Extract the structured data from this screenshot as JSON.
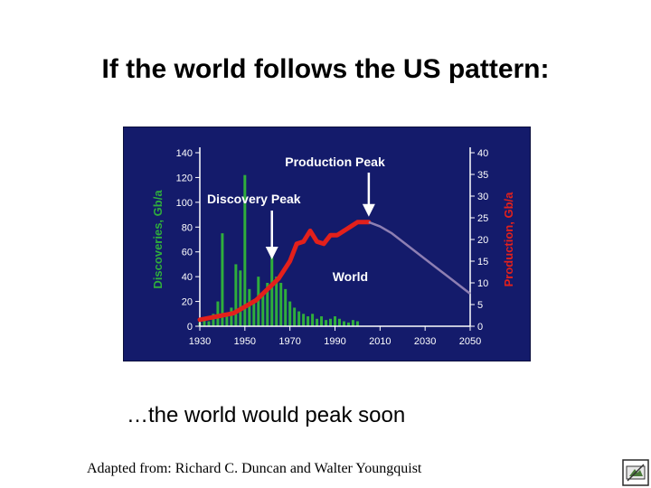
{
  "slide": {
    "title": "If the world follows the US pattern:",
    "subtitle": "…the world would peak soon",
    "credit": "Adapted from: Richard C. Duncan and Walter Youngquist"
  },
  "chart_data": {
    "type": "bar+line",
    "ylabel_left": "Discoveries, Gb/a",
    "ylabel_right": "Production, Gb/a",
    "x_ticks": [
      1930,
      1950,
      1970,
      1990,
      2010,
      2030,
      2050
    ],
    "y_left_ticks": [
      0,
      20,
      40,
      60,
      80,
      100,
      120,
      140
    ],
    "y_right_ticks": [
      0,
      5,
      10,
      15,
      20,
      25,
      30,
      35,
      40
    ],
    "xlim": [
      1930,
      2050
    ],
    "ylim_left": [
      0,
      140
    ],
    "ylim_right": [
      0,
      40
    ],
    "colors": {
      "background": "#141b6b",
      "discoveries": "#2fae3c",
      "production_history": "#e3201b",
      "production_forecast": "#8e7fb3",
      "text": "#ffffff",
      "right_label": "#e3201b"
    },
    "series": [
      {
        "name": "Discoveries",
        "axis": "left",
        "x": [
          1930,
          1932,
          1934,
          1936,
          1938,
          1940,
          1942,
          1944,
          1946,
          1948,
          1950,
          1952,
          1954,
          1956,
          1958,
          1960,
          1962,
          1964,
          1966,
          1968,
          1970,
          1972,
          1974,
          1976,
          1978,
          1980,
          1982,
          1984,
          1986,
          1988,
          1990,
          1992,
          1994,
          1996,
          1998,
          2000
        ],
        "values": [
          3,
          5,
          4,
          10,
          20,
          75,
          8,
          15,
          50,
          45,
          122,
          30,
          20,
          40,
          25,
          35,
          60,
          40,
          35,
          30,
          20,
          15,
          12,
          10,
          8,
          10,
          6,
          8,
          5,
          6,
          8,
          6,
          4,
          3,
          5,
          4
        ]
      },
      {
        "name": "World",
        "axis": "right",
        "history": {
          "x": [
            1930,
            1935,
            1940,
            1945,
            1950,
            1955,
            1960,
            1965,
            1970,
            1973,
            1976,
            1979,
            1982,
            1985,
            1988,
            1991,
            1994,
            1997,
            2000,
            2005
          ],
          "values": [
            1.5,
            2.0,
            2.5,
            3.0,
            4.5,
            6.0,
            8.5,
            11.0,
            15.0,
            19.0,
            19.5,
            22.0,
            19.5,
            19.0,
            21.0,
            21.0,
            22.0,
            23.0,
            24.0,
            24.0
          ]
        },
        "forecast": {
          "x": [
            2005,
            2010,
            2015,
            2020,
            2025,
            2030,
            2035,
            2040,
            2045,
            2050
          ],
          "values": [
            24.0,
            23.0,
            21.5,
            19.5,
            17.5,
            15.5,
            13.5,
            11.5,
            9.5,
            7.5
          ]
        }
      }
    ],
    "annotations": [
      {
        "text": "Discovery Peak",
        "x": 1962,
        "axis": "left"
      },
      {
        "text": "Production Peak",
        "x": 2005,
        "axis": "right"
      },
      {
        "text": "World",
        "x": 2000,
        "axis": "right"
      }
    ]
  }
}
